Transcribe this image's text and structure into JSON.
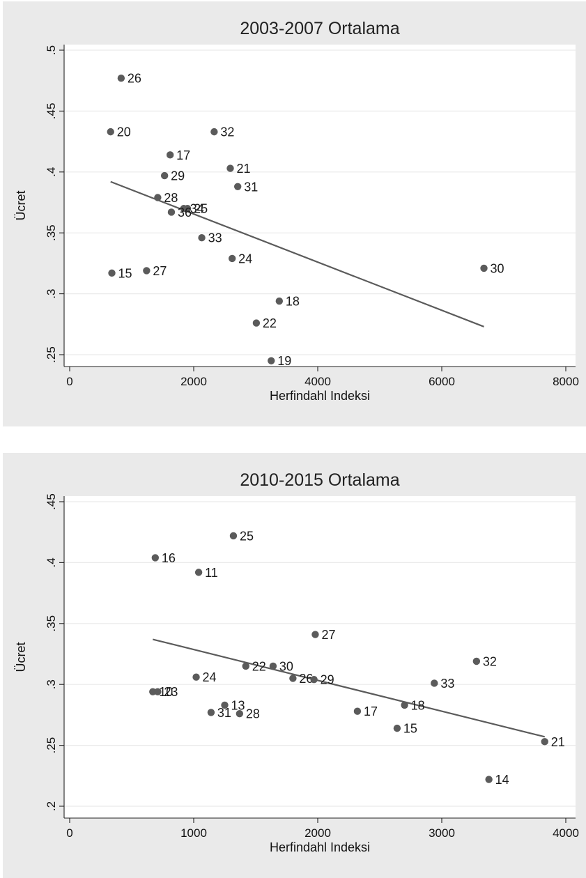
{
  "chart_data": [
    {
      "type": "scatter",
      "title": "2003-2007 Ortalama",
      "xlabel": "Herfindahl Indeksi",
      "ylabel": "Ücret",
      "xlim": [
        0,
        8000
      ],
      "ylim": [
        0.25,
        0.5
      ],
      "xticks": [
        0,
        2000,
        4000,
        6000,
        8000
      ],
      "xtick_labels": [
        "0",
        "2000",
        "4000",
        "6000",
        "8000"
      ],
      "yticks": [
        0.25,
        0.3,
        0.35,
        0.4,
        0.45,
        0.5
      ],
      "ytick_labels": [
        ".25",
        ".3",
        ".35",
        ".4",
        ".45",
        ".5"
      ],
      "grid": true,
      "points": [
        {
          "label": "26",
          "x": 830,
          "y": 0.477
        },
        {
          "label": "20",
          "x": 660,
          "y": 0.433
        },
        {
          "label": "32",
          "x": 2330,
          "y": 0.433
        },
        {
          "label": "17",
          "x": 1620,
          "y": 0.414
        },
        {
          "label": "21",
          "x": 2590,
          "y": 0.403
        },
        {
          "label": "29",
          "x": 1530,
          "y": 0.397
        },
        {
          "label": "31",
          "x": 2710,
          "y": 0.388
        },
        {
          "label": "28",
          "x": 1420,
          "y": 0.379
        },
        {
          "label": "34",
          "x": 1840,
          "y": 0.37
        },
        {
          "label": "25",
          "x": 1900,
          "y": 0.37
        },
        {
          "label": "36",
          "x": 1640,
          "y": 0.367
        },
        {
          "label": "33",
          "x": 2130,
          "y": 0.346
        },
        {
          "label": "24",
          "x": 2620,
          "y": 0.329
        },
        {
          "label": "30",
          "x": 6680,
          "y": 0.321
        },
        {
          "label": "27",
          "x": 1240,
          "y": 0.319
        },
        {
          "label": "15",
          "x": 680,
          "y": 0.317
        },
        {
          "label": "18",
          "x": 3380,
          "y": 0.294
        },
        {
          "label": "22",
          "x": 3010,
          "y": 0.276
        },
        {
          "label": "19",
          "x": 3250,
          "y": 0.245
        }
      ],
      "fit_line": {
        "x": [
          660,
          6680
        ],
        "y": [
          0.392,
          0.273
        ]
      }
    },
    {
      "type": "scatter",
      "title": "2010-2015 Ortalama",
      "xlabel": "Herfindahl Indeksi",
      "ylabel": "Ücret",
      "xlim": [
        0,
        4000
      ],
      "ylim": [
        0.2,
        0.45
      ],
      "xticks": [
        0,
        1000,
        2000,
        3000,
        4000
      ],
      "xtick_labels": [
        "0",
        "1000",
        "2000",
        "3000",
        "4000"
      ],
      "yticks": [
        0.2,
        0.25,
        0.3,
        0.35,
        0.4,
        0.45
      ],
      "ytick_labels": [
        ".2",
        ".25",
        ".3",
        ".35",
        ".4",
        ".45"
      ],
      "grid": true,
      "points": [
        {
          "label": "25",
          "x": 1320,
          "y": 0.422
        },
        {
          "label": "16",
          "x": 690,
          "y": 0.404
        },
        {
          "label": "11",
          "x": 1040,
          "y": 0.392
        },
        {
          "label": "27",
          "x": 1980,
          "y": 0.341
        },
        {
          "label": "32",
          "x": 3280,
          "y": 0.319
        },
        {
          "label": "22",
          "x": 1420,
          "y": 0.315
        },
        {
          "label": "30",
          "x": 1640,
          "y": 0.315
        },
        {
          "label": "24",
          "x": 1020,
          "y": 0.306
        },
        {
          "label": "26",
          "x": 1800,
          "y": 0.305
        },
        {
          "label": "29",
          "x": 1970,
          "y": 0.304
        },
        {
          "label": "33",
          "x": 2940,
          "y": 0.301
        },
        {
          "label": "10",
          "x": 670,
          "y": 0.294
        },
        {
          "label": "23",
          "x": 710,
          "y": 0.294
        },
        {
          "label": "13",
          "x": 1250,
          "y": 0.283
        },
        {
          "label": "18",
          "x": 2700,
          "y": 0.283
        },
        {
          "label": "17",
          "x": 2320,
          "y": 0.278
        },
        {
          "label": "31",
          "x": 1140,
          "y": 0.277
        },
        {
          "label": "28",
          "x": 1370,
          "y": 0.276
        },
        {
          "label": "15",
          "x": 2640,
          "y": 0.264
        },
        {
          "label": "21",
          "x": 3830,
          "y": 0.253
        },
        {
          "label": "14",
          "x": 3380,
          "y": 0.222
        }
      ],
      "fit_line": {
        "x": [
          670,
          3830
        ],
        "y": [
          0.337,
          0.257
        ]
      }
    }
  ]
}
